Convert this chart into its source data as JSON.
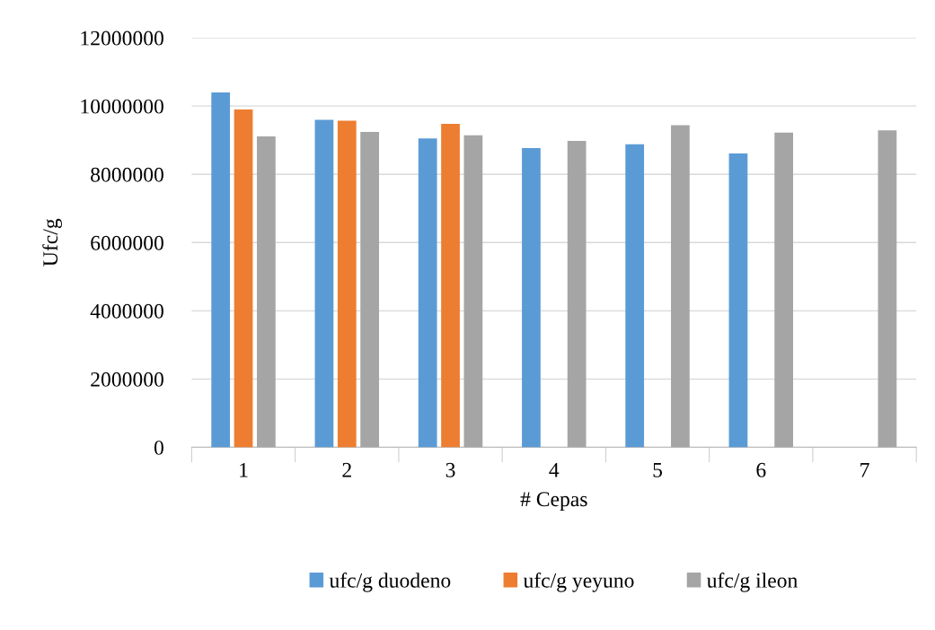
{
  "chart_data": {
    "type": "bar",
    "xlabel": "# Cepas",
    "ylabel": "Ufc/g",
    "categories": [
      "1",
      "2",
      "3",
      "4",
      "5",
      "6",
      "7"
    ],
    "series": [
      {
        "name": "ufc/g duodeno",
        "color": "#5b9bd5",
        "values": [
          10400000,
          9600000,
          9050000,
          8770000,
          8880000,
          8610000,
          null
        ]
      },
      {
        "name": "ufc/g yeyuno",
        "color": "#ed7d31",
        "values": [
          9900000,
          9570000,
          9480000,
          null,
          null,
          null,
          null
        ]
      },
      {
        "name": "ufc/g ileon",
        "color": "#a5a5a5",
        "values": [
          9110000,
          9240000,
          9140000,
          8980000,
          9440000,
          9220000,
          9290000
        ]
      }
    ],
    "ylim": [
      0,
      12000000
    ],
    "yticks": [
      0,
      2000000,
      4000000,
      6000000,
      8000000,
      10000000,
      12000000
    ],
    "grid": "y",
    "legend": "bottom"
  }
}
